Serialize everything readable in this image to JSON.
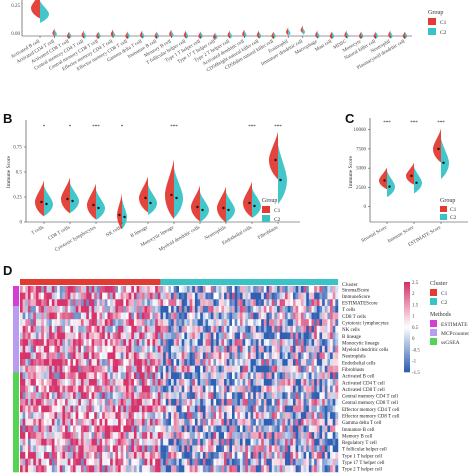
{
  "colors": {
    "C1": "#e23b33",
    "C2": "#39c3c6",
    "heat_high": "#d6336c",
    "heat_low": "#2f5fb3",
    "heat_mid": "#ffffff",
    "estimate": "#d23fd1",
    "mcp": "#b99cf0",
    "ssgsea": "#55d355"
  },
  "panels": {
    "A": "",
    "B": "B",
    "C": "C",
    "D": "D"
  },
  "legend_labels": {
    "group_title": "Group",
    "C1": "C1",
    "C2": "C2",
    "cluster_title": "Cluster",
    "methods_title": "Methods"
  },
  "chart_data": [
    {
      "id": "A",
      "type": "violin",
      "ylabel": "",
      "yticks": [
        "0.25",
        "0.00"
      ],
      "categories": [
        "Activated B cell",
        "Activated CD4 T cell",
        "Activated CD8 T cell",
        "Central memory CD4 T cell",
        "Central memory CD8 T cell",
        "Effector memory CD4 T cell",
        "Effector memory CD8 T cell",
        "Gamma delta T cell",
        "Immature B cell",
        "Memory B cell",
        "T follicular helper cell",
        "Type 1 T helper cell",
        "Type 17 T helper cell",
        "Type 2 T helper cell",
        "Activated dendritic cell",
        "CD56bright natural killer cell",
        "CD56dim natural killer cell",
        "Eosinophil",
        "Immature dendritic cell",
        "Macrophage",
        "Mast cell",
        "MDSC",
        "Monocyte",
        "Natural killer cell",
        "Neutrophil",
        "Plasmacytoid dendritic cell"
      ],
      "series": [
        {
          "name": "C1",
          "values": [
            0.3,
            0.05,
            0.02,
            0.03,
            0.02,
            0.04,
            0.02,
            0.03,
            0.02,
            0.04,
            0.03,
            0.02,
            0.01,
            0.03,
            0.04,
            0.03,
            0.02,
            0.06,
            0.08,
            0.03,
            0.02,
            0.03,
            0.02,
            0.02,
            0.03,
            0.02
          ]
        },
        {
          "name": "C2",
          "values": [
            0.24,
            0.04,
            0.02,
            0.02,
            0.02,
            0.03,
            0.02,
            0.02,
            0.02,
            0.03,
            0.02,
            0.02,
            0.01,
            0.02,
            0.03,
            0.02,
            0.02,
            0.05,
            0.06,
            0.02,
            0.02,
            0.02,
            0.02,
            0.02,
            0.02,
            0.02
          ]
        }
      ]
    },
    {
      "id": "B",
      "type": "violin",
      "ylabel": "Immune Score",
      "ylim": [
        0,
        1
      ],
      "yticks": [
        0.0,
        0.25,
        0.5,
        0.75
      ],
      "categories": [
        "T cells",
        "CD8 T cells",
        "Cytotoxic lymphocytes",
        "NK cells",
        "B lineage",
        "Monocytic lineage",
        "Myeloid dendritic cells",
        "Neutrophils",
        "Endothelial cells",
        "Fibroblasts"
      ],
      "significance": [
        "*",
        "*",
        "***",
        "*",
        "",
        "***",
        "",
        "",
        "***",
        "***"
      ],
      "series": [
        {
          "name": "C1",
          "values": [
            0.2,
            0.23,
            0.17,
            0.07,
            0.24,
            0.27,
            0.15,
            0.14,
            0.19,
            0.62
          ]
        },
        {
          "name": "C2",
          "values": [
            0.18,
            0.21,
            0.14,
            0.05,
            0.19,
            0.24,
            0.12,
            0.12,
            0.16,
            0.42
          ]
        }
      ]
    },
    {
      "id": "C",
      "type": "violin",
      "ylabel": "Immune Score",
      "ylim": [
        -2000,
        11000
      ],
      "yticks": [
        0,
        2500,
        5000,
        7500,
        10000
      ],
      "categories": [
        "Stromal Score",
        "Immune Score",
        "ESTIMATE Score"
      ],
      "significance": [
        "***",
        "***",
        "***"
      ],
      "series": [
        {
          "name": "C1",
          "values": [
            3400,
            4000,
            7500
          ]
        },
        {
          "name": "C2",
          "values": [
            2600,
            3100,
            5700
          ]
        }
      ]
    },
    {
      "id": "D",
      "type": "heatmap",
      "color_scale": {
        "min": -1.5,
        "max": 2.5,
        "ticks": [
          "2.5",
          "2",
          "1.5",
          "1",
          "0.5",
          "0",
          "-0.5",
          "-1",
          "-1.5"
        ]
      },
      "rows": [
        {
          "label": "StromalScore",
          "method": "ESTIMATE"
        },
        {
          "label": "ImmuneScore",
          "method": "ESTIMATE"
        },
        {
          "label": "ESTIMATEScore",
          "method": "ESTIMATE"
        },
        {
          "label": "T cells",
          "method": "MCPcounter"
        },
        {
          "label": "CD8 T cells",
          "method": "MCPcounter"
        },
        {
          "label": "Cytotoxic lymphocytes",
          "method": "MCPcounter"
        },
        {
          "label": "NK cells",
          "method": "MCPcounter"
        },
        {
          "label": "B lineage",
          "method": "MCPcounter"
        },
        {
          "label": "Monocytic lineage",
          "method": "MCPcounter"
        },
        {
          "label": "Myeloid dendritic cells",
          "method": "MCPcounter"
        },
        {
          "label": "Neutrophils",
          "method": "MCPcounter"
        },
        {
          "label": "Endothelial cells",
          "method": "MCPcounter"
        },
        {
          "label": "Fibroblasts",
          "method": "MCPcounter"
        },
        {
          "label": "Activated B cell",
          "method": "ssGSEA"
        },
        {
          "label": "Activated CD4 T cell",
          "method": "ssGSEA"
        },
        {
          "label": "Activated CD8 T cell",
          "method": "ssGSEA"
        },
        {
          "label": "Central memory CD4 T cell",
          "method": "ssGSEA"
        },
        {
          "label": "Central memory CD8 T cell",
          "method": "ssGSEA"
        },
        {
          "label": "Effector memory CD4 T cell",
          "method": "ssGSEA"
        },
        {
          "label": "Effector memory CD8 T cell",
          "method": "ssGSEA"
        },
        {
          "label": "Gamma delta T cell",
          "method": "ssGSEA"
        },
        {
          "label": "Immature B cell",
          "method": "ssGSEA"
        },
        {
          "label": "Memory B cell",
          "method": "ssGSEA"
        },
        {
          "label": "Regulatory T cell",
          "method": "ssGSEA"
        },
        {
          "label": "T follicular helper cell",
          "method": "ssGSEA"
        },
        {
          "label": "Type 1 T helper cell",
          "method": "ssGSEA"
        },
        {
          "label": "Type 17 T helper cell",
          "method": "ssGSEA"
        },
        {
          "label": "Type 2 T helper cell",
          "method": "ssGSEA"
        }
      ],
      "clusters": [
        "C1",
        "C2"
      ],
      "cluster_split": 0.44,
      "methods": [
        "ESTIMATE",
        "MCPcounter",
        "ssGSEA"
      ],
      "top_annotation": "Cluster",
      "side_annotation": "Methods"
    }
  ]
}
